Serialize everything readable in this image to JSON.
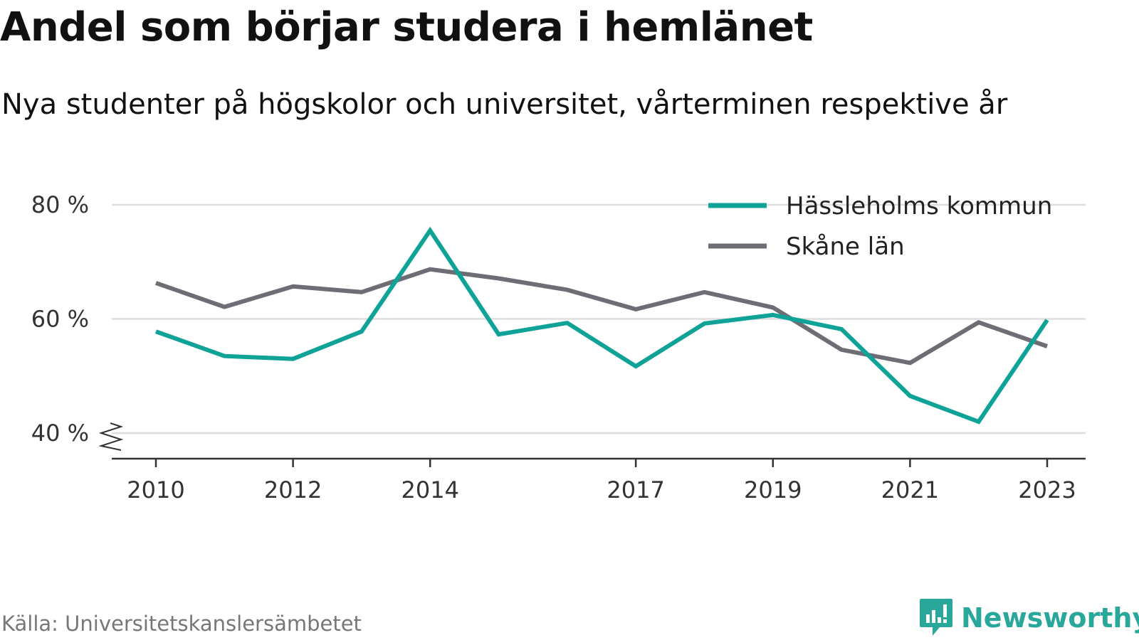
{
  "title": "Andel som börjar studera i hemlänet",
  "subtitle": "Nya studenter på högskolor och universitet, vårterminen respektive år",
  "source": "Källa: Universitetskanslersämbetet",
  "brand": {
    "name": "Newsworthy",
    "icon": "newsworthy-logo-icon",
    "color": "#2aa79b"
  },
  "colors": {
    "grid": "#dddddd",
    "axis": "#333333",
    "series_1": "#0fa398",
    "series_2": "#6d6d75"
  },
  "chart_data": {
    "type": "line",
    "title": "",
    "xlabel": "",
    "ylabel": "",
    "x": [
      2010,
      2011,
      2012,
      2013,
      2014,
      2015,
      2016,
      2017,
      2018,
      2019,
      2020,
      2021,
      2022,
      2023
    ],
    "x_ticks": [
      "2010",
      "2012",
      "2014",
      "2017",
      "2019",
      "2021",
      "2023"
    ],
    "y_ticks": [
      {
        "value": 40,
        "label": "40 %"
      },
      {
        "value": 60,
        "label": "60 %"
      },
      {
        "value": 80,
        "label": "80 %"
      }
    ],
    "ylim": [
      35.6,
      80
    ],
    "y_axis_break": true,
    "grid": true,
    "legend_position": "top-right",
    "series": [
      {
        "name": "Hässleholms kommun",
        "color": "#0fa398",
        "values": [
          57.8,
          53.5,
          53.0,
          57.8,
          75.5,
          57.3,
          59.3,
          51.7,
          59.2,
          60.7,
          58.2,
          46.5,
          42.0,
          59.8
        ]
      },
      {
        "name": "Skåne län",
        "color": "#6d6d75",
        "values": [
          66.3,
          62.1,
          65.7,
          64.7,
          68.7,
          67.1,
          65.1,
          61.7,
          64.7,
          62.0,
          54.6,
          52.3,
          59.4,
          55.2
        ]
      }
    ]
  }
}
